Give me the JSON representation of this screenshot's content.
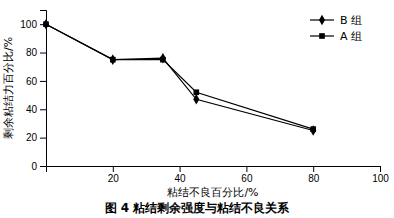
{
  "chart_data": {
    "type": "line",
    "title": "图 4   粘结剩余强度与粘结不良关系",
    "xlabel": "粘结不良百分比/%",
    "ylabel": "剩余粘结力百分比/%",
    "x": [
      0,
      20,
      35,
      45,
      80
    ],
    "series": [
      {
        "name": "B 组",
        "color": "#000000",
        "marker": "diamond",
        "values": [
          100,
          75,
          76,
          47,
          25
        ]
      },
      {
        "name": "A 组",
        "color": "#000000",
        "marker": "square",
        "values": [
          100,
          75,
          75,
          52,
          26
        ]
      }
    ],
    "xlim": [
      0,
      100
    ],
    "xticks": [
      20,
      40,
      60,
      80,
      100
    ],
    "ylim": [
      0,
      110
    ],
    "yticks": [
      0,
      20,
      40,
      60,
      80,
      100
    ],
    "grid": false,
    "legend": "upper right"
  }
}
